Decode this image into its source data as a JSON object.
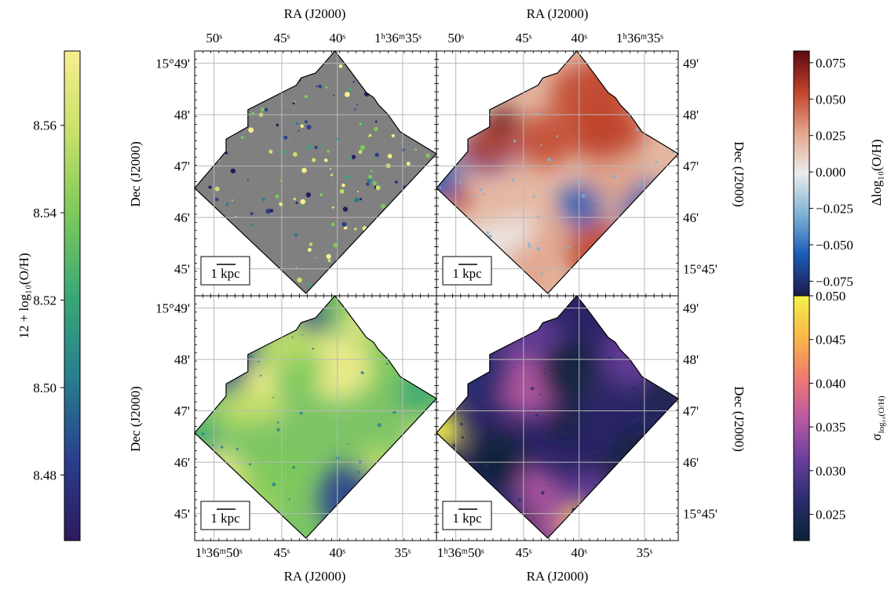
{
  "chart_data": {
    "type": "heatmap",
    "colors": {
      "map_background": "#808080",
      "grid": "#b8b8b8",
      "viridis_like": [
        "#2d1a5e",
        "#2a3f8f",
        "#277f8e",
        "#3aa876",
        "#7cc95a",
        "#c8e06a",
        "#f7ee8f"
      ],
      "diverging": [
        "#1c1b4b",
        "#1c5bb5",
        "#7fb3d5",
        "#ececec",
        "#e3a58b",
        "#c0432b",
        "#5b0a14"
      ],
      "uncertainty": [
        "#0b2337",
        "#2a2d6e",
        "#6b3f9c",
        "#b95aa3",
        "#ee7a6f",
        "#f8b74a",
        "#f4f24a"
      ]
    },
    "axes": {
      "ra_label": "RA (J2000)",
      "dec_label": "Dec (J2000)",
      "ra_ticks_top": [
        "50ˢ",
        "45ˢ",
        "40ˢ",
        "1ʰ36ᵐ35ˢ"
      ],
      "ra_ticks_bottom": [
        "1ʰ36ᵐ50ˢ",
        "45ˢ",
        "40ˢ",
        "35ˢ"
      ],
      "dec_ticks_left": [
        "15°49'",
        "48'",
        "47'",
        "46'",
        "45'"
      ],
      "dec_ticks_right": [
        "49'",
        "48'",
        "47'",
        "46'",
        "15°45'"
      ],
      "scalebar_label": "1 kpc"
    },
    "colorbars": [
      {
        "name": "12 + log₁₀(O/H)",
        "ticks": [
          "8.48",
          "8.50",
          "8.52",
          "8.54",
          "8.56"
        ],
        "tick_values": [
          8.48,
          8.5,
          8.52,
          8.54,
          8.56
        ],
        "range": [
          8.465,
          8.577
        ]
      },
      {
        "name": "Δlog₁₀(O/H)",
        "ticks": [
          "0.075",
          "0.050",
          "0.025",
          "0.000",
          "−0.025",
          "−0.050",
          "−0.075"
        ],
        "tick_values": [
          0.075,
          0.05,
          0.025,
          0.0,
          -0.025,
          -0.05,
          -0.075
        ],
        "range": [
          -0.085,
          0.083
        ]
      },
      {
        "name": "σ",
        "name_subscript": "log₁₀(O/H)",
        "ticks": [
          "0.050",
          "0.045",
          "0.040",
          "0.035",
          "0.030",
          "0.025"
        ],
        "tick_values": [
          0.05,
          0.045,
          0.04,
          0.035,
          0.03,
          0.025
        ],
        "range": [
          0.022,
          0.05
        ]
      }
    ],
    "panels": [
      {
        "id": "top-left",
        "colormap": "viridis_like"
      },
      {
        "id": "top-right",
        "colormap": "diverging"
      },
      {
        "id": "bottom-left",
        "colormap": "viridis_like"
      },
      {
        "id": "bottom-right",
        "colormap": "uncertainty"
      }
    ]
  }
}
